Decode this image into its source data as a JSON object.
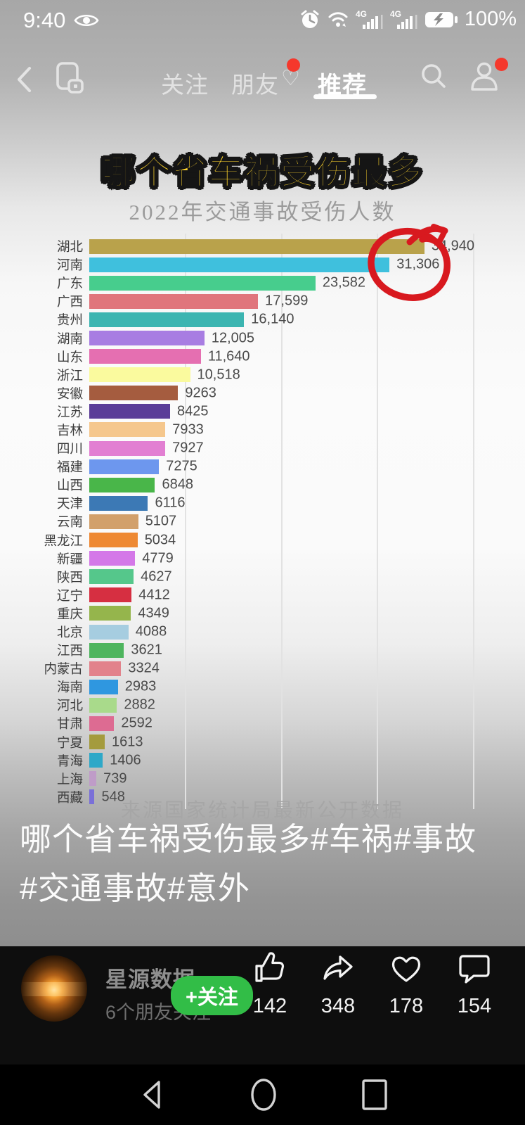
{
  "status_bar": {
    "time": "9:40",
    "battery_percent": "100%",
    "network_label": "4G"
  },
  "top_nav": {
    "tabs": {
      "follow": "关注",
      "friends": "朋友",
      "friends_heart_icon": "♡",
      "recommend": "推荐"
    },
    "active_tab": "推荐"
  },
  "video": {
    "headline": "哪个省车祸受伤最多",
    "caption": "哪个省车祸受伤最多#车祸#事故#交通事故#意外"
  },
  "chart_data": {
    "type": "bar",
    "orientation": "horizontal",
    "title": "2022年交通事故受伤人数",
    "source": "来源国家统计局最新公开数据",
    "xlim": [
      0,
      41400
    ],
    "gridlines": [
      10000,
      20000,
      30000,
      40000
    ],
    "grid": true,
    "legend": "none",
    "categories": [
      "湖北",
      "河南",
      "广东",
      "广西",
      "贵州",
      "湖南",
      "山东",
      "浙江",
      "安徽",
      "江苏",
      "吉林",
      "四川",
      "福建",
      "山西",
      "天津",
      "云南",
      "黑龙江",
      "新疆",
      "陕西",
      "辽宁",
      "重庆",
      "北京",
      "江西",
      "内蒙古",
      "海南",
      "河北",
      "甘肃",
      "宁夏",
      "青海",
      "上海",
      "西藏"
    ],
    "values": [
      34940,
      31306,
      23582,
      17599,
      16140,
      12005,
      11640,
      10518,
      9263,
      8425,
      7933,
      7927,
      7275,
      6848,
      6116,
      5107,
      5034,
      4779,
      4627,
      4412,
      4349,
      4088,
      3621,
      3324,
      2983,
      2882,
      2592,
      1613,
      1406,
      739,
      548
    ],
    "value_labels": [
      "34,940",
      "31,306",
      "23,582",
      "17,599",
      "16,140",
      "12,005",
      "11,640",
      "10,518",
      "9263",
      "8425",
      "7933",
      "7927",
      "7275",
      "6848",
      "6116",
      "5107",
      "5034",
      "4779",
      "4627",
      "4412",
      "4349",
      "4088",
      "3621",
      "3324",
      "2983",
      "2882",
      "2592",
      "1613",
      "1406",
      "739",
      "548"
    ],
    "bar_colors": [
      "#b9a24b",
      "#3fc0dd",
      "#47cd8d",
      "#e0757c",
      "#3cb5b1",
      "#a87de2",
      "#e56fb1",
      "#fafa9e",
      "#a55c3f",
      "#5b3d98",
      "#f5c78d",
      "#e27fd2",
      "#6d97ee",
      "#49b649",
      "#3c79b5",
      "#d2a06b",
      "#ee8933",
      "#d478e8",
      "#55c78b",
      "#d62f41",
      "#95b54c",
      "#a6cde0",
      "#4eb55e",
      "#e2828b",
      "#2f97e0",
      "#a9da8b",
      "#dd6b92",
      "#a49b3d",
      "#2ea8c8",
      "#bf9cc8",
      "#7a70d8"
    ],
    "annotation": {
      "shape": "hand-drawn red circle",
      "color": "#d8191f",
      "highlights": "河南 31,306"
    }
  },
  "footer": {
    "username": "星源数据",
    "friends_note": "6个朋友关注",
    "follow_button": "+关注",
    "actions": [
      {
        "name": "like",
        "count": "142"
      },
      {
        "name": "share",
        "count": "348"
      },
      {
        "name": "favorite",
        "count": "178"
      },
      {
        "name": "comment",
        "count": "154"
      }
    ]
  }
}
